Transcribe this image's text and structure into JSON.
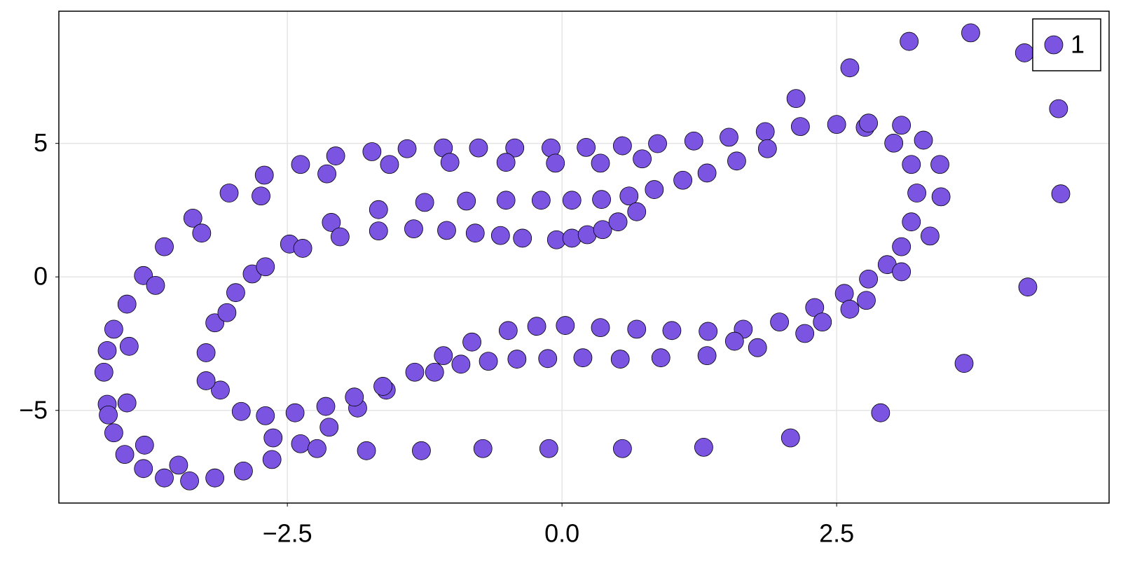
{
  "chart_data": {
    "type": "scatter",
    "x": [
      -4.14,
      -4.17,
      -4.14,
      -4.08,
      -3.96,
      -3.81,
      -3.62,
      -3.36,
      -3.03,
      -2.71,
      -2.38,
      -2.06,
      -1.73,
      -1.41,
      -1.08,
      -0.76,
      -0.43,
      -0.1,
      0.22,
      0.55,
      0.87,
      1.2,
      1.52,
      1.85,
      2.17,
      2.5,
      2.76,
      3.02,
      3.18,
      3.23,
      3.18,
      3.09,
      2.96,
      2.79,
      2.57,
      2.3,
      1.98,
      1.65,
      1.33,
      1.0,
      0.68,
      0.35,
      0.03,
      -0.23,
      -0.49,
      -0.82,
      -1.08,
      -1.34,
      -1.6,
      -1.86,
      -2.12,
      -2.38,
      -2.64,
      -2.9,
      -3.16,
      -3.39,
      -3.62,
      -3.81,
      -3.98,
      -4.08,
      -4.13,
      -1.57,
      -1.02,
      -0.51,
      -0.06,
      0.35,
      0.73,
      1.32,
      1.59,
      1.87,
      2.13,
      2.62,
      3.16,
      3.72,
      4.21,
      4.52,
      4.54,
      4.24,
      3.66,
      2.9,
      2.08,
      1.29,
      0.55,
      -0.12,
      -0.72,
      -1.28,
      -1.78,
      -2.23,
      -2.63,
      -2.7,
      -2.92,
      -3.11,
      -3.24,
      -3.24,
      -3.16,
      -3.05,
      -2.97,
      -2.82,
      -2.7,
      -2.48,
      -2.36,
      -2.1,
      -2.02,
      -1.67,
      -1.67,
      -1.35,
      -1.25,
      -1.05,
      -0.87,
      -0.79,
      -0.56,
      -0.51,
      -0.36,
      -0.19,
      -0.05,
      0.09,
      0.09,
      0.23,
      0.36,
      0.37,
      0.51,
      0.61,
      0.68,
      0.84,
      1.1,
      3.35,
      3.45,
      3.44,
      3.29,
      3.09,
      2.79,
      3.09,
      2.77,
      2.62,
      2.37,
      2.21,
      1.78,
      1.57,
      1.32,
      0.9,
      0.53,
      0.19,
      -0.13,
      -0.41,
      -0.67,
      -0.92,
      -1.16,
      -1.63,
      -1.89,
      -2.15,
      -2.43,
      -3.49,
      -3.8,
      -3.96,
      -3.94,
      -3.7,
      -2.14,
      -2.74,
      -3.28
    ],
    "series": [
      {
        "name": "1",
        "color": "#7b55e2",
        "values": [
          -4.77,
          -3.57,
          -2.76,
          -1.96,
          -1.02,
          0.05,
          1.13,
          2.2,
          3.14,
          3.81,
          4.21,
          4.53,
          4.69,
          4.8,
          4.83,
          4.83,
          4.83,
          4.83,
          4.85,
          4.91,
          4.99,
          5.09,
          5.23,
          5.44,
          5.63,
          5.71,
          5.6,
          5.01,
          4.21,
          3.14,
          2.06,
          1.13,
          0.46,
          -0.08,
          -0.62,
          -1.15,
          -1.69,
          -1.96,
          -2.04,
          -2.01,
          -1.96,
          -1.9,
          -1.82,
          -1.85,
          -2.01,
          -2.44,
          -2.95,
          -3.57,
          -4.24,
          -4.91,
          -5.63,
          -6.25,
          -6.84,
          -7.27,
          -7.53,
          -7.64,
          -7.53,
          -7.18,
          -6.65,
          -5.84,
          -5.17,
          4.21,
          4.29,
          4.29,
          4.26,
          4.26,
          4.42,
          3.89,
          4.34,
          4.8,
          6.68,
          7.83,
          8.82,
          9.14,
          8.39,
          6.3,
          3.11,
          -0.38,
          -3.24,
          -5.09,
          -6.03,
          -6.38,
          -6.43,
          -6.43,
          -6.43,
          -6.51,
          -6.51,
          -6.43,
          -6.03,
          -5.2,
          -5.04,
          -4.24,
          -3.89,
          -2.84,
          -1.72,
          -1.34,
          -0.59,
          0.11,
          0.38,
          1.23,
          1.07,
          2.04,
          1.5,
          2.52,
          1.72,
          1.8,
          2.79,
          1.74,
          2.84,
          1.64,
          1.55,
          2.87,
          1.45,
          2.87,
          1.39,
          1.45,
          2.87,
          1.58,
          2.9,
          1.77,
          2.06,
          3.03,
          2.44,
          3.27,
          3.62,
          1.53,
          3.0,
          4.21,
          5.12,
          5.68,
          5.76,
          0.19,
          -0.88,
          -1.21,
          -1.69,
          -2.12,
          -2.65,
          -2.41,
          -2.95,
          -3.03,
          -3.08,
          -3.03,
          -3.06,
          -3.08,
          -3.16,
          -3.27,
          -3.57,
          -4.1,
          -4.5,
          -4.85,
          -5.09,
          -7.05,
          -6.3,
          -4.72,
          -2.6,
          -0.32,
          3.86,
          3.03,
          1.64
        ]
      }
    ],
    "xlim": [
      -4.58,
      4.98
    ],
    "ylim": [
      -8.47,
      9.95
    ],
    "xticks": [
      {
        "value": -2.5,
        "label": "−2.5"
      },
      {
        "value": 0,
        "label": "0.0"
      },
      2.5
    ],
    "yticks": [
      {
        "value": -5,
        "label": "−5"
      },
      0,
      5
    ],
    "grid": true,
    "legend": "top-right"
  }
}
